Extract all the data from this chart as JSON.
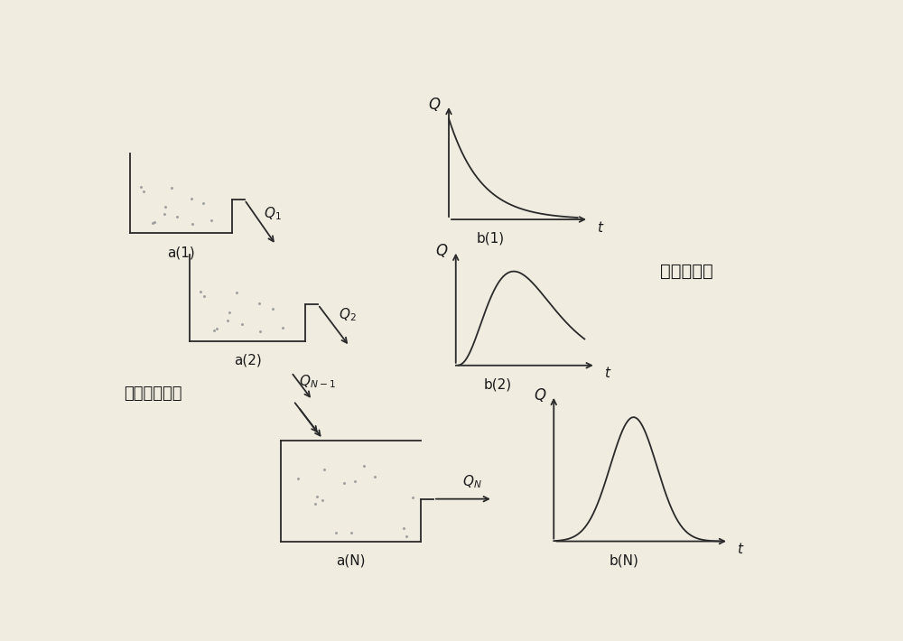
{
  "bg_color": "#f0ece0",
  "line_color": "#2a2a2a",
  "text_color": "#1a1a1a",
  "dot_color": "#999999",
  "label_a1": "a(1)",
  "label_a2": "a(2)",
  "label_aN": "a(N)",
  "label_b1": "b(1)",
  "label_b2": "b(2)",
  "label_bN": "b(N)",
  "label_Q": "Q",
  "label_t": "t",
  "label_linear_reservoir": "线性存储水库",
  "label_flow_curve": "流量过程线",
  "fig_width": 10.0,
  "fig_height": 7.1
}
